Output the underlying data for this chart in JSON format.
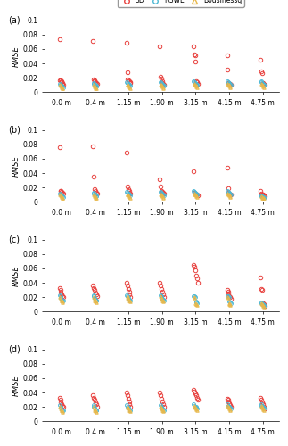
{
  "categories": [
    "0.0 m",
    "0.4 m",
    "1.15 m",
    "1.90 m",
    "3.15 m",
    "4.15 m",
    "4.75 m"
  ],
  "panel_labels": [
    "(a)",
    "(b)",
    "(c)",
    "(d)"
  ],
  "ylim": [
    0,
    0.1
  ],
  "yticks": [
    0,
    0.02,
    0.04,
    0.06,
    0.08,
    0.1
  ],
  "ylabel": "RMSE",
  "colors": {
    "3D": "#e8423f",
    "NSWE": "#4db8d4",
    "Bousinessq": "#e8b84b"
  },
  "data": {
    "a": {
      "3D": [
        [
          0.073,
          0.017,
          0.016,
          0.015,
          0.014,
          0.013,
          0.012,
          0.011
        ],
        [
          0.071,
          0.018,
          0.016,
          0.015,
          0.014,
          0.013,
          0.012
        ],
        [
          0.069,
          0.028,
          0.018,
          0.016,
          0.015,
          0.014,
          0.013
        ],
        [
          0.063,
          0.022,
          0.019,
          0.015,
          0.013,
          0.012,
          0.011
        ],
        [
          0.063,
          0.053,
          0.051,
          0.043,
          0.015,
          0.014,
          0.012
        ],
        [
          0.051,
          0.031,
          0.013,
          0.012,
          0.012,
          0.011,
          0.011
        ],
        [
          0.045,
          0.029,
          0.027,
          0.013,
          0.012,
          0.011,
          0.01
        ]
      ],
      "NSWE": [
        [
          0.012,
          0.011,
          0.01,
          0.009,
          0.008,
          0.007
        ],
        [
          0.013,
          0.012,
          0.011,
          0.01,
          0.009,
          0.008
        ],
        [
          0.014,
          0.013,
          0.012,
          0.011,
          0.01,
          0.009
        ],
        [
          0.014,
          0.013,
          0.012,
          0.011,
          0.01,
          0.009
        ],
        [
          0.015,
          0.014,
          0.013,
          0.012,
          0.011,
          0.01
        ],
        [
          0.015,
          0.014,
          0.013,
          0.012,
          0.011,
          0.01
        ],
        [
          0.015,
          0.014,
          0.013,
          0.012,
          0.011,
          0.01
        ]
      ],
      "Bousinessq": [
        [
          0.01,
          0.009,
          0.008,
          0.007,
          0.006,
          0.005
        ],
        [
          0.01,
          0.009,
          0.008,
          0.007,
          0.006,
          0.005
        ],
        [
          0.011,
          0.01,
          0.009,
          0.008,
          0.007,
          0.006
        ],
        [
          0.011,
          0.01,
          0.009,
          0.008,
          0.007,
          0.006
        ],
        [
          0.012,
          0.011,
          0.01,
          0.009,
          0.008,
          0.007
        ],
        [
          0.012,
          0.011,
          0.01,
          0.009,
          0.008,
          0.007
        ],
        [
          0.012,
          0.011,
          0.01,
          0.009,
          0.008,
          0.007
        ]
      ]
    },
    "b": {
      "3D": [
        [
          0.076,
          0.016,
          0.015,
          0.014,
          0.013,
          0.012
        ],
        [
          0.077,
          0.035,
          0.018,
          0.015,
          0.013,
          0.012
        ],
        [
          0.069,
          0.022,
          0.018,
          0.015,
          0.013,
          0.012
        ],
        [
          0.032,
          0.022,
          0.016,
          0.014,
          0.013,
          0.012
        ],
        [
          0.042,
          0.013,
          0.012,
          0.011,
          0.01,
          0.009
        ],
        [
          0.047,
          0.019,
          0.013,
          0.012,
          0.011,
          0.01
        ],
        [
          0.016,
          0.012,
          0.011,
          0.01,
          0.009,
          0.008
        ]
      ],
      "NSWE": [
        [
          0.012,
          0.011,
          0.01,
          0.009,
          0.008,
          0.007
        ],
        [
          0.013,
          0.012,
          0.011,
          0.01,
          0.009,
          0.008
        ],
        [
          0.014,
          0.013,
          0.012,
          0.011,
          0.01,
          0.009
        ],
        [
          0.014,
          0.013,
          0.012,
          0.011,
          0.01,
          0.009
        ],
        [
          0.015,
          0.014,
          0.013,
          0.012,
          0.011,
          0.01
        ],
        [
          0.015,
          0.014,
          0.013,
          0.012,
          0.011,
          0.01
        ],
        [
          0.009,
          0.008,
          0.008,
          0.007,
          0.007,
          0.006
        ]
      ],
      "Bousinessq": [
        [
          0.01,
          0.009,
          0.008,
          0.007,
          0.006,
          0.005
        ],
        [
          0.01,
          0.009,
          0.008,
          0.007,
          0.006,
          0.005
        ],
        [
          0.011,
          0.01,
          0.009,
          0.008,
          0.007,
          0.006
        ],
        [
          0.011,
          0.01,
          0.009,
          0.008,
          0.007,
          0.006
        ],
        [
          0.012,
          0.011,
          0.01,
          0.009,
          0.008,
          0.007
        ],
        [
          0.012,
          0.011,
          0.01,
          0.009,
          0.008,
          0.007
        ],
        [
          0.008,
          0.007,
          0.006,
          0.006,
          0.005,
          0.005
        ]
      ]
    },
    "c": {
      "3D": [
        [
          0.033,
          0.03,
          0.027,
          0.024,
          0.022,
          0.02
        ],
        [
          0.037,
          0.033,
          0.03,
          0.027,
          0.024,
          0.021
        ],
        [
          0.04,
          0.036,
          0.032,
          0.028,
          0.024,
          0.02
        ],
        [
          0.04,
          0.036,
          0.032,
          0.028,
          0.024,
          0.02
        ],
        [
          0.065,
          0.062,
          0.058,
          0.05,
          0.046,
          0.04
        ],
        [
          0.03,
          0.028,
          0.025,
          0.022,
          0.02,
          0.018
        ],
        [
          0.047,
          0.032,
          0.03,
          0.012,
          0.01,
          0.008
        ]
      ],
      "NSWE": [
        [
          0.023,
          0.021,
          0.019,
          0.017,
          0.016,
          0.015
        ],
        [
          0.023,
          0.021,
          0.019,
          0.017,
          0.016,
          0.015
        ],
        [
          0.023,
          0.021,
          0.019,
          0.018,
          0.017,
          0.016
        ],
        [
          0.023,
          0.021,
          0.019,
          0.018,
          0.017,
          0.016
        ],
        [
          0.022,
          0.021,
          0.02,
          0.014,
          0.013,
          0.012
        ],
        [
          0.022,
          0.021,
          0.02,
          0.014,
          0.013,
          0.012
        ],
        [
          0.013,
          0.012,
          0.011,
          0.01,
          0.009,
          0.008
        ]
      ],
      "Bousinessq": [
        [
          0.02,
          0.018,
          0.016,
          0.015,
          0.014,
          0.013
        ],
        [
          0.02,
          0.018,
          0.016,
          0.015,
          0.014,
          0.013
        ],
        [
          0.021,
          0.019,
          0.018,
          0.016,
          0.015,
          0.014
        ],
        [
          0.021,
          0.019,
          0.018,
          0.016,
          0.015,
          0.014
        ],
        [
          0.02,
          0.019,
          0.012,
          0.011,
          0.01,
          0.009
        ],
        [
          0.02,
          0.019,
          0.012,
          0.011,
          0.01,
          0.009
        ],
        [
          0.012,
          0.011,
          0.01,
          0.009,
          0.008,
          0.007
        ]
      ]
    },
    "d": {
      "3D": [
        [
          0.033,
          0.03,
          0.027,
          0.024,
          0.022,
          0.02
        ],
        [
          0.037,
          0.033,
          0.03,
          0.027,
          0.024,
          0.021
        ],
        [
          0.04,
          0.036,
          0.032,
          0.028,
          0.024,
          0.02
        ],
        [
          0.04,
          0.036,
          0.032,
          0.028,
          0.024,
          0.02
        ],
        [
          0.044,
          0.041,
          0.039,
          0.036,
          0.033,
          0.03
        ],
        [
          0.032,
          0.03,
          0.028,
          0.025,
          0.023,
          0.02
        ],
        [
          0.033,
          0.03,
          0.027,
          0.024,
          0.021,
          0.018
        ]
      ],
      "NSWE": [
        [
          0.023,
          0.021,
          0.019,
          0.017,
          0.016,
          0.015
        ],
        [
          0.023,
          0.021,
          0.019,
          0.017,
          0.016,
          0.015
        ],
        [
          0.023,
          0.021,
          0.019,
          0.018,
          0.017,
          0.016
        ],
        [
          0.023,
          0.021,
          0.019,
          0.018,
          0.017,
          0.016
        ],
        [
          0.024,
          0.022,
          0.021,
          0.02,
          0.019,
          0.018
        ],
        [
          0.024,
          0.022,
          0.021,
          0.02,
          0.019,
          0.018
        ],
        [
          0.024,
          0.022,
          0.021,
          0.02,
          0.019,
          0.018
        ]
      ],
      "Bousinessq": [
        [
          0.02,
          0.018,
          0.016,
          0.015,
          0.014,
          0.013
        ],
        [
          0.02,
          0.018,
          0.016,
          0.015,
          0.014,
          0.013
        ],
        [
          0.021,
          0.019,
          0.018,
          0.016,
          0.015,
          0.014
        ],
        [
          0.021,
          0.019,
          0.018,
          0.016,
          0.015,
          0.014
        ],
        [
          0.022,
          0.02,
          0.019,
          0.018,
          0.017,
          0.016
        ],
        [
          0.022,
          0.02,
          0.019,
          0.018,
          0.017,
          0.016
        ],
        [
          0.022,
          0.02,
          0.019,
          0.018,
          0.017,
          0.016
        ]
      ]
    }
  }
}
